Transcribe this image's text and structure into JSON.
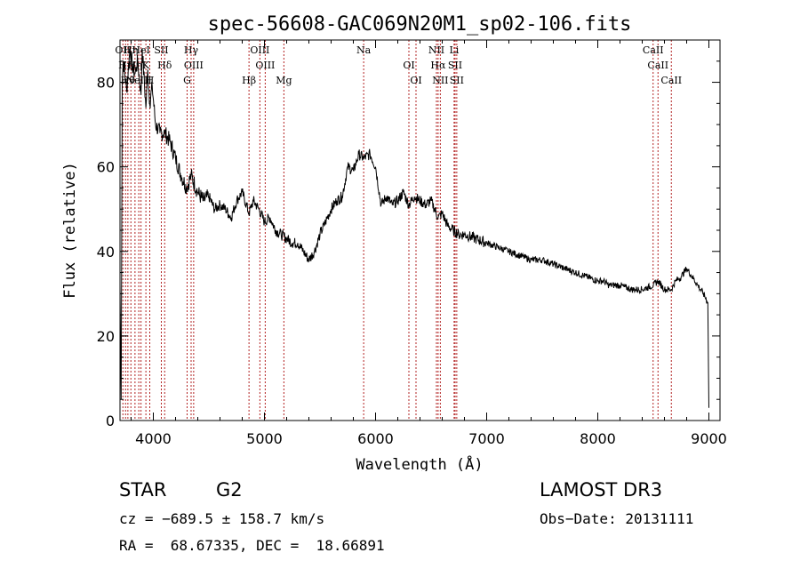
{
  "chart_data": {
    "type": "line",
    "title": "spec-56608-GAC069N20M1_sp02-106.fits",
    "xlabel": "Wavelength (Å)",
    "ylabel": "Flux (relative)",
    "xlim": [
      3700,
      9100
    ],
    "ylim": [
      0,
      90
    ],
    "xticks": [
      4000,
      5000,
      6000,
      7000,
      8000,
      9000
    ],
    "yticks": [
      0,
      20,
      40,
      60,
      80
    ],
    "grid": false,
    "series": [
      {
        "name": "spectrum",
        "x": [
          3700,
          3710,
          3720,
          3730,
          3760,
          3790,
          3810,
          3835,
          3860,
          3889,
          3900,
          3933,
          3950,
          3968,
          3990,
          4020,
          4060,
          4102,
          4150,
          4200,
          4250,
          4300,
          4340,
          4400,
          4450,
          4500,
          4550,
          4600,
          4650,
          4700,
          4750,
          4800,
          4861,
          4900,
          4950,
          5000,
          5050,
          5100,
          5150,
          5200,
          5250,
          5300,
          5350,
          5400,
          5450,
          5500,
          5550,
          5600,
          5650,
          5700,
          5750,
          5800,
          5850,
          5893,
          5950,
          6000,
          6050,
          6100,
          6150,
          6200,
          6250,
          6300,
          6350,
          6400,
          6450,
          6500,
          6563,
          6600,
          6650,
          6700,
          6750,
          6800,
          6900,
          7000,
          7100,
          7200,
          7300,
          7400,
          7500,
          7600,
          7700,
          7800,
          7900,
          8000,
          8050,
          8100,
          8200,
          8300,
          8400,
          8500,
          8542,
          8600,
          8662,
          8700,
          8750,
          8800,
          8850,
          8900,
          8950,
          8990,
          9000
        ],
        "y": [
          32,
          5,
          80,
          85,
          78,
          88,
          84,
          82,
          85,
          77,
          88,
          74,
          83,
          75,
          79,
          70,
          68,
          68,
          66,
          62,
          58,
          55,
          58,
          54,
          52,
          53,
          50,
          51,
          50,
          48,
          52,
          54,
          49,
          52,
          50,
          47,
          48,
          45,
          44,
          43,
          42,
          42,
          40,
          38,
          40,
          44,
          47,
          50,
          52,
          53,
          60,
          59,
          63,
          62,
          63,
          60,
          51,
          53,
          51,
          52,
          54,
          51,
          53,
          52,
          51,
          52,
          48,
          49,
          46,
          45,
          44,
          44,
          43,
          42,
          41,
          40,
          39,
          38,
          38,
          37,
          36,
          35,
          34,
          33,
          33,
          32,
          32,
          31,
          31,
          32,
          33,
          31,
          31,
          33,
          34,
          36,
          34,
          32,
          30,
          28,
          3
        ]
      }
    ],
    "line_annotations": [
      {
        "wavelength": 3726,
        "label": "OII"
      },
      {
        "wavelength": 3750,
        "label": "Hη"
      },
      {
        "wavelength": 3771,
        "label": "Hθ"
      },
      {
        "wavelength": 3798,
        "label": "Hη"
      },
      {
        "wavelength": 3835,
        "label": "Hη"
      },
      {
        "wavelength": 3869,
        "label": "NeIII"
      },
      {
        "wavelength": 3889,
        "label": "HeI"
      },
      {
        "wavelength": 3933,
        "label": "K"
      },
      {
        "wavelength": 3968,
        "label": "H"
      },
      {
        "wavelength": 4072,
        "label": "SII"
      },
      {
        "wavelength": 4102,
        "label": "Hδ"
      },
      {
        "wavelength": 4304,
        "label": "G"
      },
      {
        "wavelength": 4340,
        "label": "Hγ"
      },
      {
        "wavelength": 4363,
        "label": "OIII"
      },
      {
        "wavelength": 4861,
        "label": "Hβ"
      },
      {
        "wavelength": 4959,
        "label": "OIII"
      },
      {
        "wavelength": 5007,
        "label": "OIII"
      },
      {
        "wavelength": 5175,
        "label": "Mg"
      },
      {
        "wavelength": 5893,
        "label": "Na"
      },
      {
        "wavelength": 6300,
        "label": "OI"
      },
      {
        "wavelength": 6364,
        "label": "OI"
      },
      {
        "wavelength": 6548,
        "label": "NII"
      },
      {
        "wavelength": 6563,
        "label": "Hα"
      },
      {
        "wavelength": 6583,
        "label": "NII"
      },
      {
        "wavelength": 6707,
        "label": "Li"
      },
      {
        "wavelength": 6716,
        "label": "SII"
      },
      {
        "wavelength": 6731,
        "label": "SII"
      },
      {
        "wavelength": 8498,
        "label": "CaII"
      },
      {
        "wavelength": 8542,
        "label": "CaII"
      },
      {
        "wavelength": 8662,
        "label": "CaII"
      }
    ]
  },
  "info": {
    "class_label": "STAR",
    "subclass": "G2",
    "survey": "LAMOST DR3",
    "cz": "cz = −689.5 ± 158.7 km/s",
    "obs_date": "Obs−Date: 20131111",
    "coords": "RA =  68.67335, DEC =  18.66891"
  },
  "colors": {
    "spectrum": "#000000",
    "marker_lines": "#b22222",
    "axes": "#000000",
    "background": "#ffffff"
  }
}
